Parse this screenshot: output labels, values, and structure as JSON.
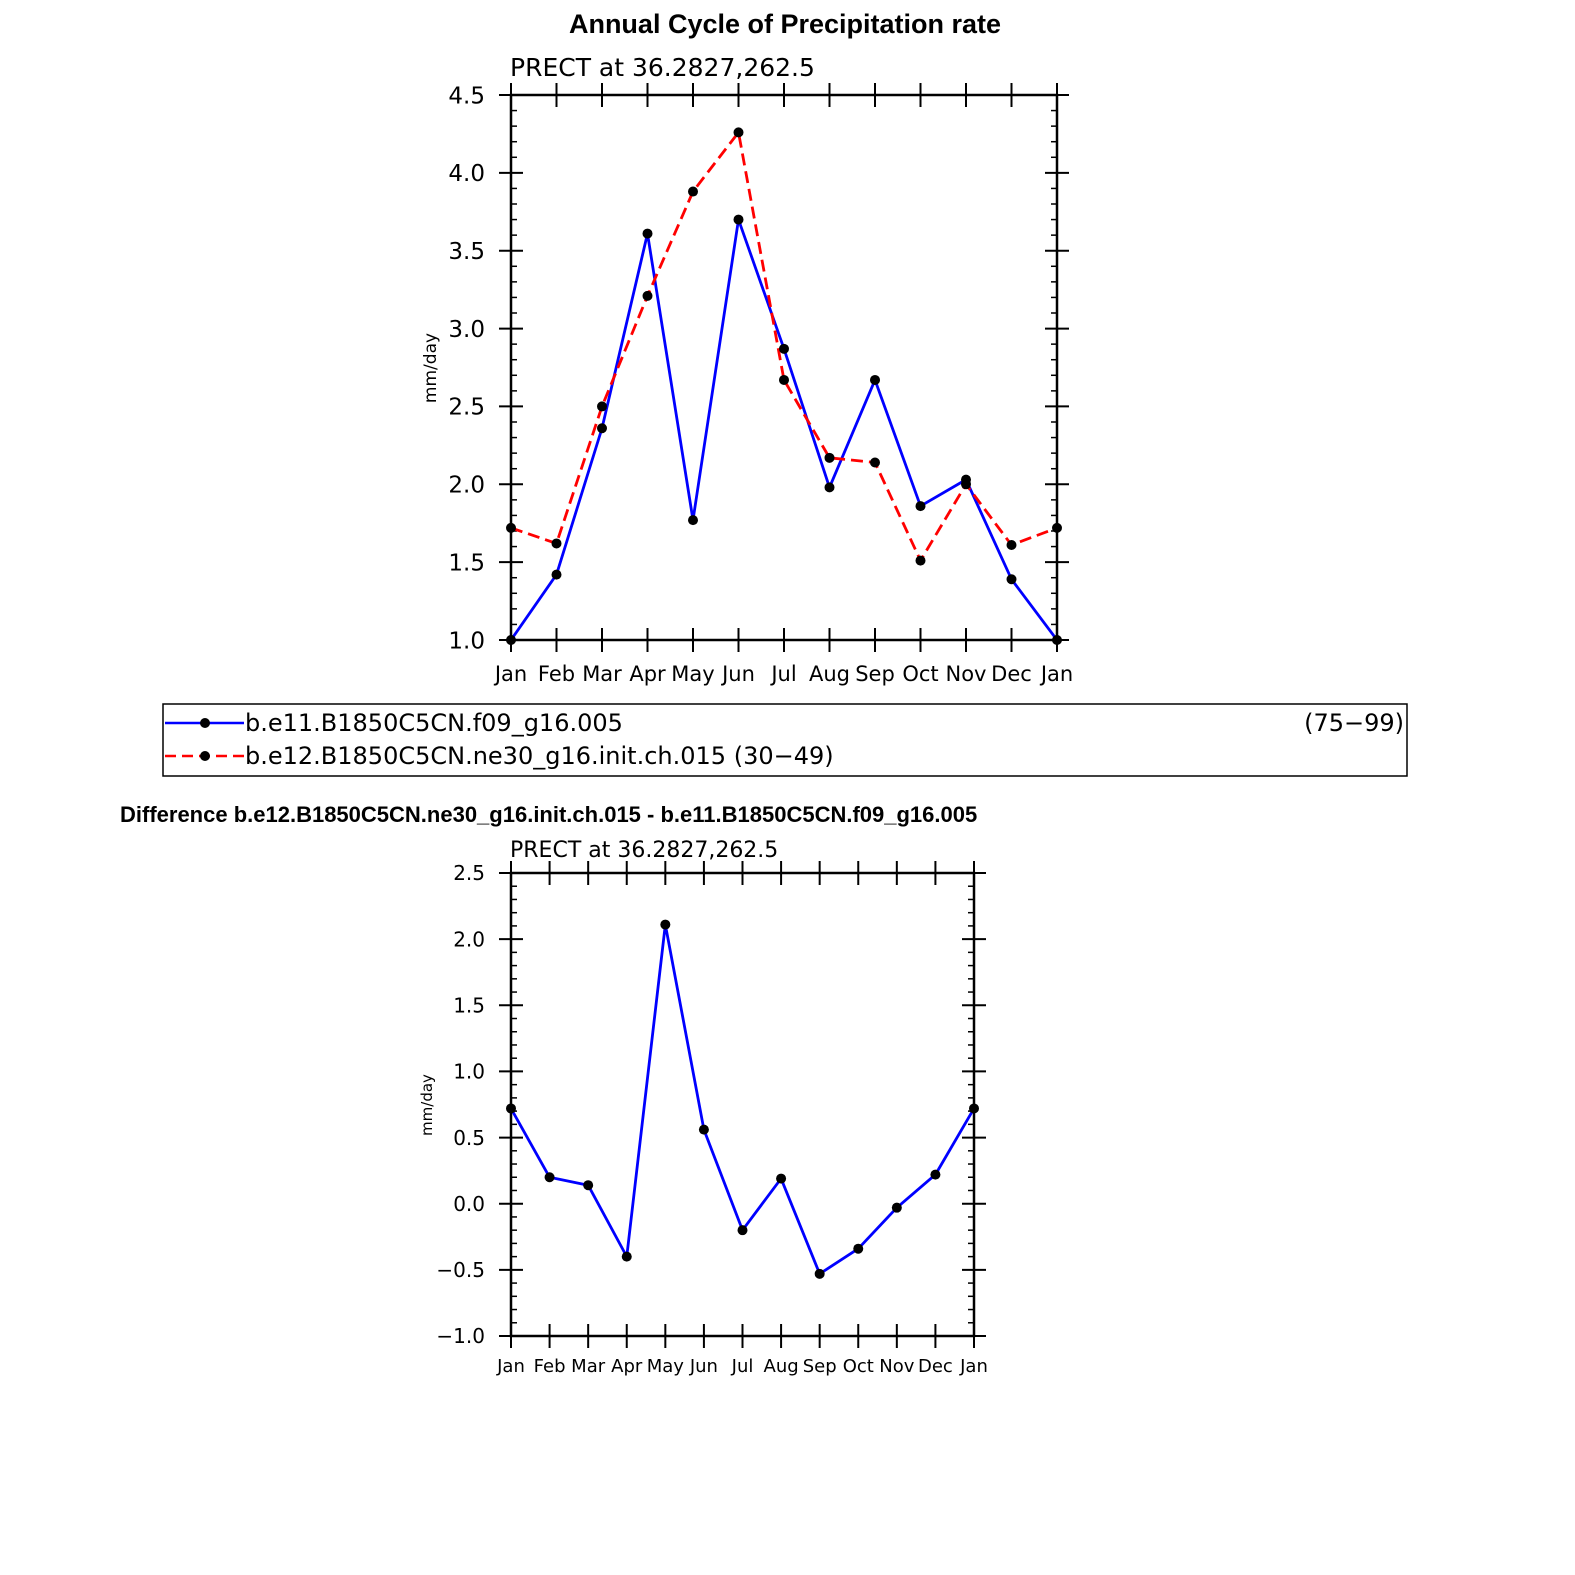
{
  "chart_data": [
    {
      "type": "line",
      "title": "Annual Cycle of Precipitation rate",
      "subtitle": "PRECT at 36.2827,262.5",
      "ylabel": "mm/day",
      "xlabel": "",
      "categories": [
        "Jan",
        "Feb",
        "Mar",
        "Apr",
        "May",
        "Jun",
        "Jul",
        "Aug",
        "Sep",
        "Oct",
        "Nov",
        "Dec",
        "Jan"
      ],
      "ylim": [
        1.0,
        4.5
      ],
      "yticks": [
        "1.0",
        "1.5",
        "2.0",
        "2.5",
        "3.0",
        "3.5",
        "4.0",
        "4.5"
      ],
      "series": [
        {
          "name": "b.e11.B1850C5CN.f09_g16.005",
          "years": "(75−99)",
          "color": "#0000ff",
          "dash": "solid",
          "values": [
            1.0,
            1.42,
            2.36,
            3.61,
            1.77,
            3.7,
            2.87,
            1.98,
            2.67,
            1.86,
            2.03,
            1.39,
            1.0
          ]
        },
        {
          "name": "b.e12.B1850C5CN.ne30_g16.init.ch.015",
          "years": "(30−49)",
          "color": "#ff0000",
          "dash": "dashed",
          "values": [
            1.72,
            1.62,
            2.5,
            3.21,
            3.88,
            4.26,
            2.67,
            2.17,
            2.14,
            1.51,
            2.0,
            1.61,
            1.72
          ]
        }
      ],
      "legend": "below"
    },
    {
      "type": "line",
      "title": "Difference b.e12.B1850C5CN.ne30_g16.init.ch.015 - b.e11.B1850C5CN.f09_g16.005",
      "subtitle": "PRECT at 36.2827,262.5",
      "ylabel": "mm/day",
      "xlabel": "",
      "categories": [
        "Jan",
        "Feb",
        "Mar",
        "Apr",
        "May",
        "Jun",
        "Jul",
        "Aug",
        "Sep",
        "Oct",
        "Nov",
        "Dec",
        "Jan"
      ],
      "ylim": [
        -1.0,
        2.5
      ],
      "yticks": [
        "−1.0",
        "−0.5",
        "0.0",
        "0.5",
        "1.0",
        "1.5",
        "2.0",
        "2.5"
      ],
      "series": [
        {
          "name": "difference",
          "color": "#0000ff",
          "dash": "solid",
          "values": [
            0.72,
            0.2,
            0.14,
            -0.4,
            2.11,
            0.56,
            -0.2,
            0.19,
            -0.53,
            -0.34,
            -0.03,
            0.22,
            0.72
          ]
        }
      ]
    }
  ]
}
